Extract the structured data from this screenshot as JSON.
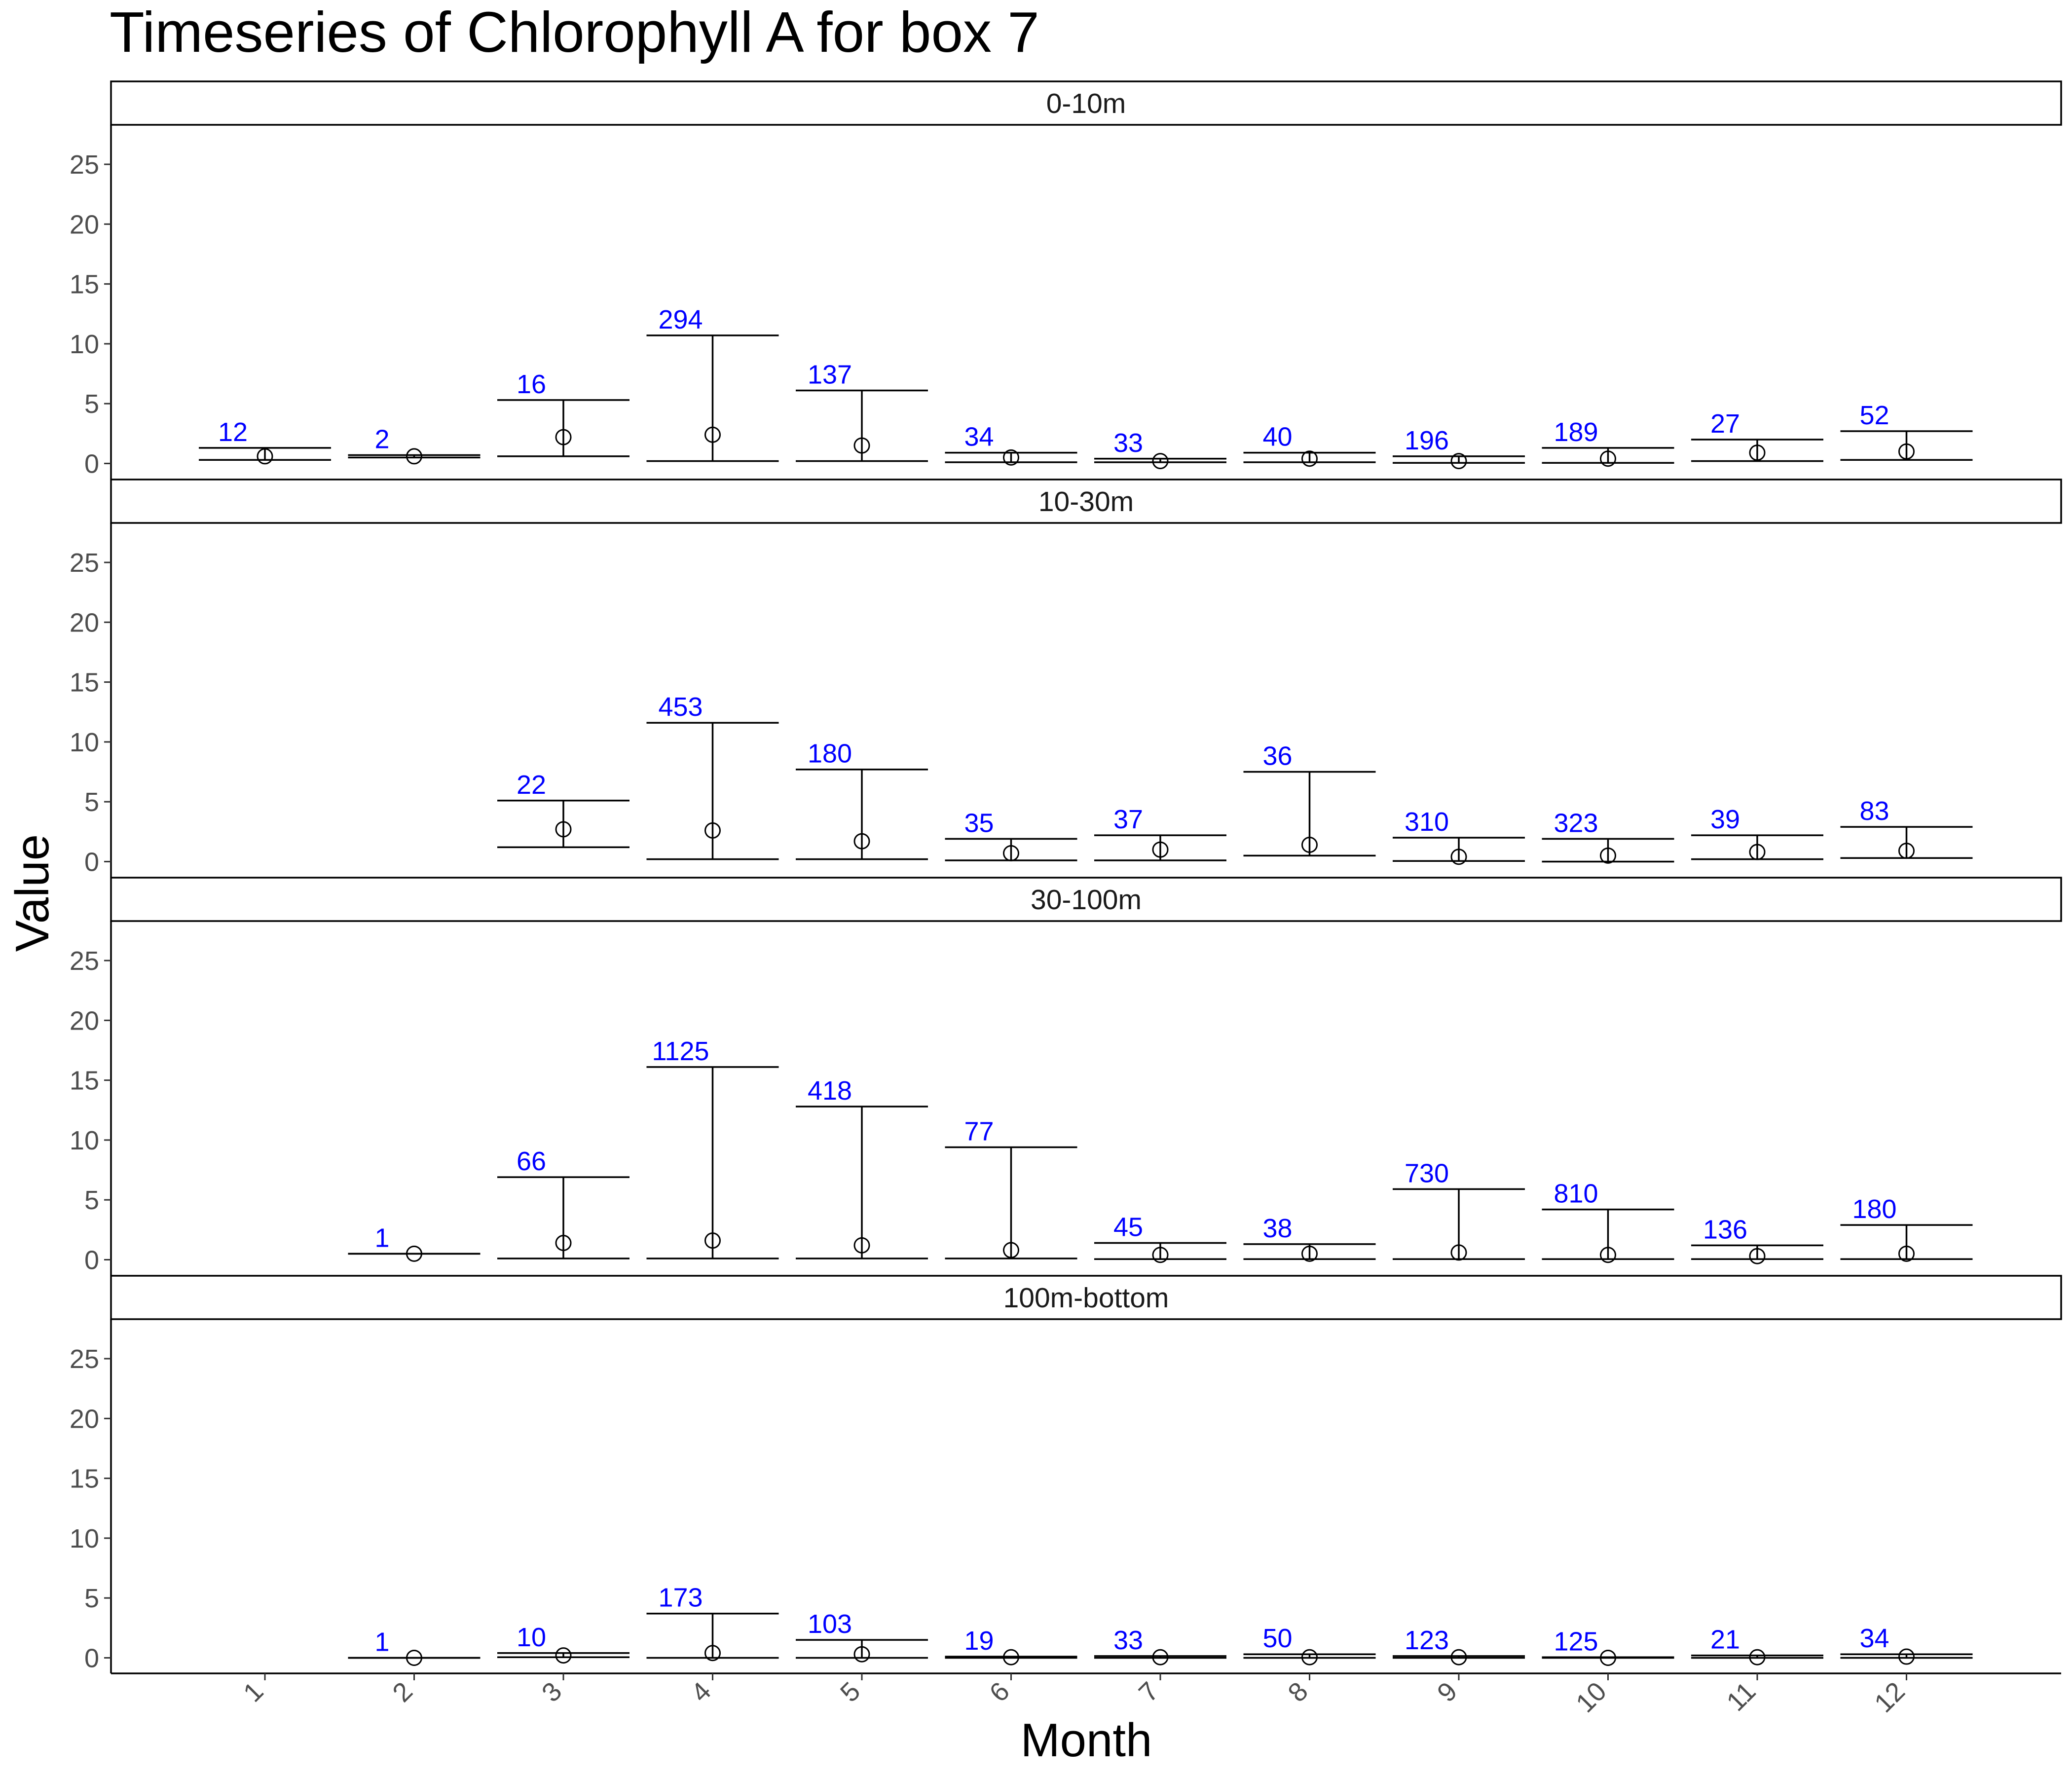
{
  "chart_data": {
    "type": "errorbar",
    "title": "Timeseries of  Chlorophyll A  for box  7",
    "xlabel": "Month",
    "ylabel": "Value",
    "x_categories": [
      "1",
      "2",
      "3",
      "4",
      "5",
      "6",
      "7",
      "8",
      "9",
      "10",
      "11",
      "12"
    ],
    "y_ticks": [
      "0",
      "5",
      "10",
      "15",
      "20",
      "25"
    ],
    "ylim": [
      -1.3,
      28.3
    ],
    "grid": false,
    "point_style": "open-circle",
    "label_color": "#0000ff",
    "panels": [
      {
        "name": "0-10m",
        "points": [
          {
            "month": 1,
            "value": 0.6,
            "low": 0.3,
            "high": 1.3,
            "n": "12"
          },
          {
            "month": 2,
            "value": 0.6,
            "low": 0.5,
            "high": 0.7,
            "n": "2"
          },
          {
            "month": 3,
            "value": 2.2,
            "low": 0.6,
            "high": 5.3,
            "n": "16"
          },
          {
            "month": 4,
            "value": 2.4,
            "low": 0.2,
            "high": 10.7,
            "n": "294"
          },
          {
            "month": 5,
            "value": 1.5,
            "low": 0.2,
            "high": 6.1,
            "n": "137"
          },
          {
            "month": 6,
            "value": 0.5,
            "low": 0.1,
            "high": 0.9,
            "n": "34"
          },
          {
            "month": 7,
            "value": 0.2,
            "low": 0.1,
            "high": 0.4,
            "n": "33"
          },
          {
            "month": 8,
            "value": 0.4,
            "low": 0.1,
            "high": 0.9,
            "n": "40"
          },
          {
            "month": 9,
            "value": 0.2,
            "low": 0.05,
            "high": 0.6,
            "n": "196"
          },
          {
            "month": 10,
            "value": 0.4,
            "low": 0.05,
            "high": 1.3,
            "n": "189"
          },
          {
            "month": 11,
            "value": 0.9,
            "low": 0.2,
            "high": 2.0,
            "n": "27"
          },
          {
            "month": 12,
            "value": 1.0,
            "low": 0.3,
            "high": 2.7,
            "n": "52"
          }
        ]
      },
      {
        "name": "10-30m",
        "points": [
          {
            "month": 3,
            "value": 2.7,
            "low": 1.2,
            "high": 5.1,
            "n": "22"
          },
          {
            "month": 4,
            "value": 2.6,
            "low": 0.2,
            "high": 11.6,
            "n": "453"
          },
          {
            "month": 5,
            "value": 1.7,
            "low": 0.2,
            "high": 7.7,
            "n": "180"
          },
          {
            "month": 6,
            "value": 0.7,
            "low": 0.1,
            "high": 1.9,
            "n": "35"
          },
          {
            "month": 7,
            "value": 1.0,
            "low": 0.1,
            "high": 2.2,
            "n": "37"
          },
          {
            "month": 8,
            "value": 1.4,
            "low": 0.5,
            "high": 7.5,
            "n": "36"
          },
          {
            "month": 9,
            "value": 0.4,
            "low": 0.05,
            "high": 2.0,
            "n": "310"
          },
          {
            "month": 10,
            "value": 0.5,
            "low": 0.0,
            "high": 1.9,
            "n": "323"
          },
          {
            "month": 11,
            "value": 0.8,
            "low": 0.2,
            "high": 2.2,
            "n": "39"
          },
          {
            "month": 12,
            "value": 0.9,
            "low": 0.3,
            "high": 2.9,
            "n": "83"
          }
        ]
      },
      {
        "name": "30-100m",
        "points": [
          {
            "month": 2,
            "value": 0.5,
            "low": 0.5,
            "high": 0.5,
            "n": "1"
          },
          {
            "month": 3,
            "value": 1.4,
            "low": 0.1,
            "high": 6.9,
            "n": "66"
          },
          {
            "month": 4,
            "value": 1.6,
            "low": 0.1,
            "high": 16.1,
            "n": "1125"
          },
          {
            "month": 5,
            "value": 1.2,
            "low": 0.1,
            "high": 12.8,
            "n": "418"
          },
          {
            "month": 6,
            "value": 0.8,
            "low": 0.1,
            "high": 9.4,
            "n": "77"
          },
          {
            "month": 7,
            "value": 0.4,
            "low": 0.05,
            "high": 1.4,
            "n": "45"
          },
          {
            "month": 8,
            "value": 0.5,
            "low": 0.05,
            "high": 1.3,
            "n": "38"
          },
          {
            "month": 9,
            "value": 0.6,
            "low": 0.05,
            "high": 5.9,
            "n": "730"
          },
          {
            "month": 10,
            "value": 0.4,
            "low": 0.05,
            "high": 4.2,
            "n": "810"
          },
          {
            "month": 11,
            "value": 0.3,
            "low": 0.05,
            "high": 1.2,
            "n": "136"
          },
          {
            "month": 12,
            "value": 0.5,
            "low": 0.05,
            "high": 2.9,
            "n": "180"
          }
        ]
      },
      {
        "name": "100m-bottom",
        "points": [
          {
            "month": 2,
            "value": 0.0,
            "low": 0.0,
            "high": 0.0,
            "n": "1"
          },
          {
            "month": 3,
            "value": 0.2,
            "low": 0.05,
            "high": 0.4,
            "n": "10"
          },
          {
            "month": 4,
            "value": 0.4,
            "low": 0.0,
            "high": 3.7,
            "n": "173"
          },
          {
            "month": 5,
            "value": 0.3,
            "low": 0.0,
            "high": 1.5,
            "n": "103"
          },
          {
            "month": 6,
            "value": 0.05,
            "low": 0.0,
            "high": 0.1,
            "n": "19"
          },
          {
            "month": 7,
            "value": 0.05,
            "low": 0.0,
            "high": 0.15,
            "n": "33"
          },
          {
            "month": 8,
            "value": 0.05,
            "low": 0.0,
            "high": 0.3,
            "n": "50"
          },
          {
            "month": 9,
            "value": 0.05,
            "low": 0.0,
            "high": 0.15,
            "n": "123"
          },
          {
            "month": 10,
            "value": 0.0,
            "low": 0.0,
            "high": 0.05,
            "n": "125"
          },
          {
            "month": 11,
            "value": 0.05,
            "low": 0.0,
            "high": 0.2,
            "n": "21"
          },
          {
            "month": 12,
            "value": 0.1,
            "low": 0.0,
            "high": 0.3,
            "n": "34"
          }
        ]
      }
    ]
  }
}
